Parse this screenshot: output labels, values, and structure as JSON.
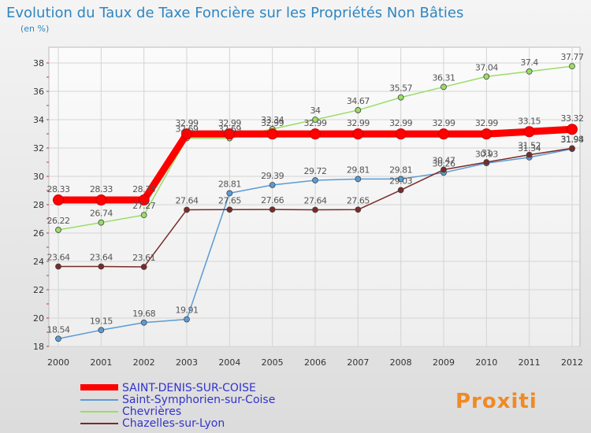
{
  "chart_data": {
    "type": "line",
    "title": "Evolution du Taux de Taxe Foncière sur les Propriétés Non Bâties",
    "subtitle": "(en %)",
    "xlabel": "",
    "ylabel": "",
    "categories": [
      "2000",
      "2001",
      "2002",
      "2003",
      "2004",
      "2005",
      "2006",
      "2007",
      "2008",
      "2009",
      "2010",
      "2011",
      "2012"
    ],
    "ylim": [
      18,
      38
    ],
    "yticks": [
      18,
      20,
      22,
      24,
      26,
      28,
      30,
      32,
      34,
      36,
      38
    ],
    "grid": true,
    "legend_position": "bottom-left",
    "series": [
      {
        "name": "SAINT-DENIS-SUR-COISE",
        "color": "#ff0000",
        "legend_color": "#3333cc",
        "values": [
          28.33,
          28.33,
          28.33,
          32.99,
          32.99,
          32.99,
          32.99,
          32.99,
          32.99,
          32.99,
          32.99,
          33.15,
          33.32
        ],
        "labels": [
          "28.33",
          "28.33",
          "28.33",
          "32.99",
          "32.99",
          "32.99",
          "32.99",
          "32.99",
          "32.99",
          "32.99",
          "32.99",
          "33.15",
          "33.32"
        ]
      },
      {
        "name": "Saint-Symphorien-sur-Coise",
        "color": "#5b9bd5",
        "legend_color": "#3333cc",
        "values": [
          18.54,
          19.15,
          19.68,
          19.91,
          28.81,
          29.39,
          29.72,
          29.81,
          29.81,
          30.26,
          30.93,
          31.34,
          31.94
        ],
        "labels": [
          "18.54",
          "19.15",
          "19.68",
          "19.91",
          "28.81",
          "29.39",
          "29.72",
          "29.81",
          "29.81",
          "30.26",
          "30.93",
          "31.34",
          "31.94"
        ]
      },
      {
        "name": "Chevrières",
        "color": "#99dd66",
        "legend_color": "#3333cc",
        "values": [
          26.22,
          26.74,
          27.27,
          32.69,
          32.69,
          33.34,
          34,
          34.67,
          35.57,
          36.31,
          37.04,
          37.4,
          37.77
        ],
        "labels": [
          "26.22",
          "26.74",
          "27.27",
          "32.69",
          "32.69",
          "33.34",
          "34",
          "34.67",
          "35.57",
          "36.31",
          "37.04",
          "37.4",
          "37.77"
        ]
      },
      {
        "name": "Chazelles-sur-Lyon",
        "color": "#7a2a2a",
        "legend_color": "#3333cc",
        "values": [
          23.64,
          23.64,
          23.61,
          27.64,
          27.65,
          27.66,
          27.64,
          27.65,
          29.03,
          30.47,
          31,
          31.52,
          31.98
        ],
        "labels": [
          "23.64",
          "23.64",
          "23.61",
          "27.64",
          "27.65",
          "27.66",
          "27.64",
          "27.65",
          "29.03",
          "30.47",
          "31",
          "31.52",
          "31.98"
        ]
      }
    ]
  },
  "branding": {
    "logo_text": "Proxiti"
  },
  "colors": {
    "title": "#2e86c1",
    "axis": "#333333",
    "grid": "#cccccc",
    "label": "#555555"
  }
}
